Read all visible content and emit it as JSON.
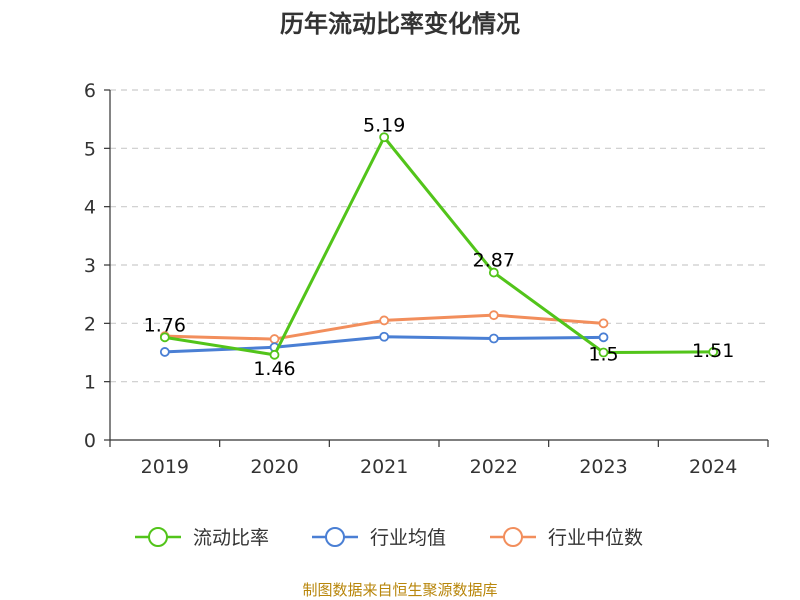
{
  "chart_data": {
    "type": "line",
    "title": "历年流动比率变化情况",
    "categories": [
      "2019",
      "2020",
      "2021",
      "2022",
      "2023",
      "2024"
    ],
    "ylim": [
      0,
      6
    ],
    "yticks": [
      "0",
      "1",
      "2",
      "3",
      "4",
      "5",
      "6"
    ],
    "grid": true,
    "legend_position": "bottom",
    "series": [
      {
        "name": "流动比率",
        "color": "#52c41a",
        "values": [
          1.76,
          1.46,
          5.19,
          2.87,
          1.5,
          1.51
        ],
        "labels": [
          "1.76",
          "1.46",
          "5.19",
          "2.87",
          "1.5",
          "1.51"
        ]
      },
      {
        "name": "行业均值",
        "color": "#4a7fd4",
        "values": [
          1.51,
          1.59,
          1.77,
          1.74,
          1.76,
          null
        ]
      },
      {
        "name": "行业中位数",
        "color": "#f28e5c",
        "values": [
          1.78,
          1.73,
          2.05,
          2.14,
          2.0,
          null
        ]
      }
    ],
    "source": "制图数据来自恒生聚源数据库"
  }
}
